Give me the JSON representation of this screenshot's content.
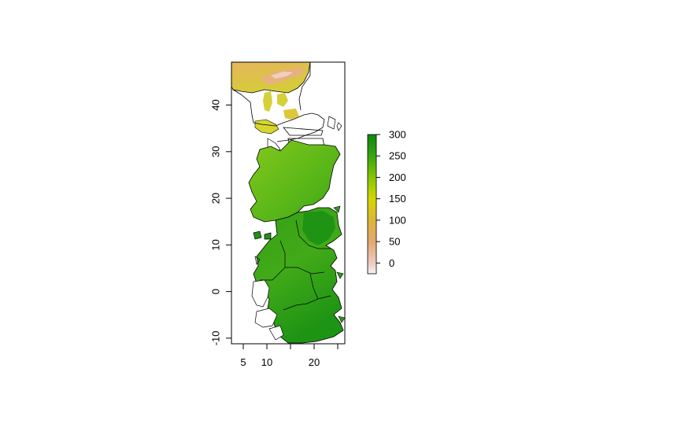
{
  "map": {
    "x_range": [
      2.5,
      26.5
    ],
    "y_range": [
      -11.2,
      49.2
    ],
    "x_ticks": [
      5,
      10,
      15,
      20,
      25
    ],
    "x_tick_labels": [
      "5",
      "10",
      "",
      "20",
      ""
    ],
    "y_ticks": [
      -10,
      0,
      10,
      20,
      30,
      40
    ],
    "y_tick_labels": [
      "-10",
      "0",
      "10",
      "20",
      "30",
      "40"
    ]
  },
  "legend": {
    "range": [
      -25,
      300
    ],
    "ticks": [
      0,
      50,
      100,
      150,
      200,
      250,
      300
    ],
    "tick_labels": [
      "0",
      "50",
      "100",
      "150",
      "200",
      "250",
      "300"
    ],
    "colors": [
      "#f2f2f2",
      "#e8b0a6",
      "#e0a050",
      "#dcc236",
      "#d2d600",
      "#7cc400",
      "#28a010",
      "#0f8a0f"
    ]
  },
  "colors": {
    "north_land": "#d9c54c",
    "north_peaks": "#e6a47a",
    "north_yellow": "#d6d62e",
    "south_light": "#6cbf1c",
    "south_mid": "#3fa81a",
    "south_dark": "#1b9214"
  }
}
